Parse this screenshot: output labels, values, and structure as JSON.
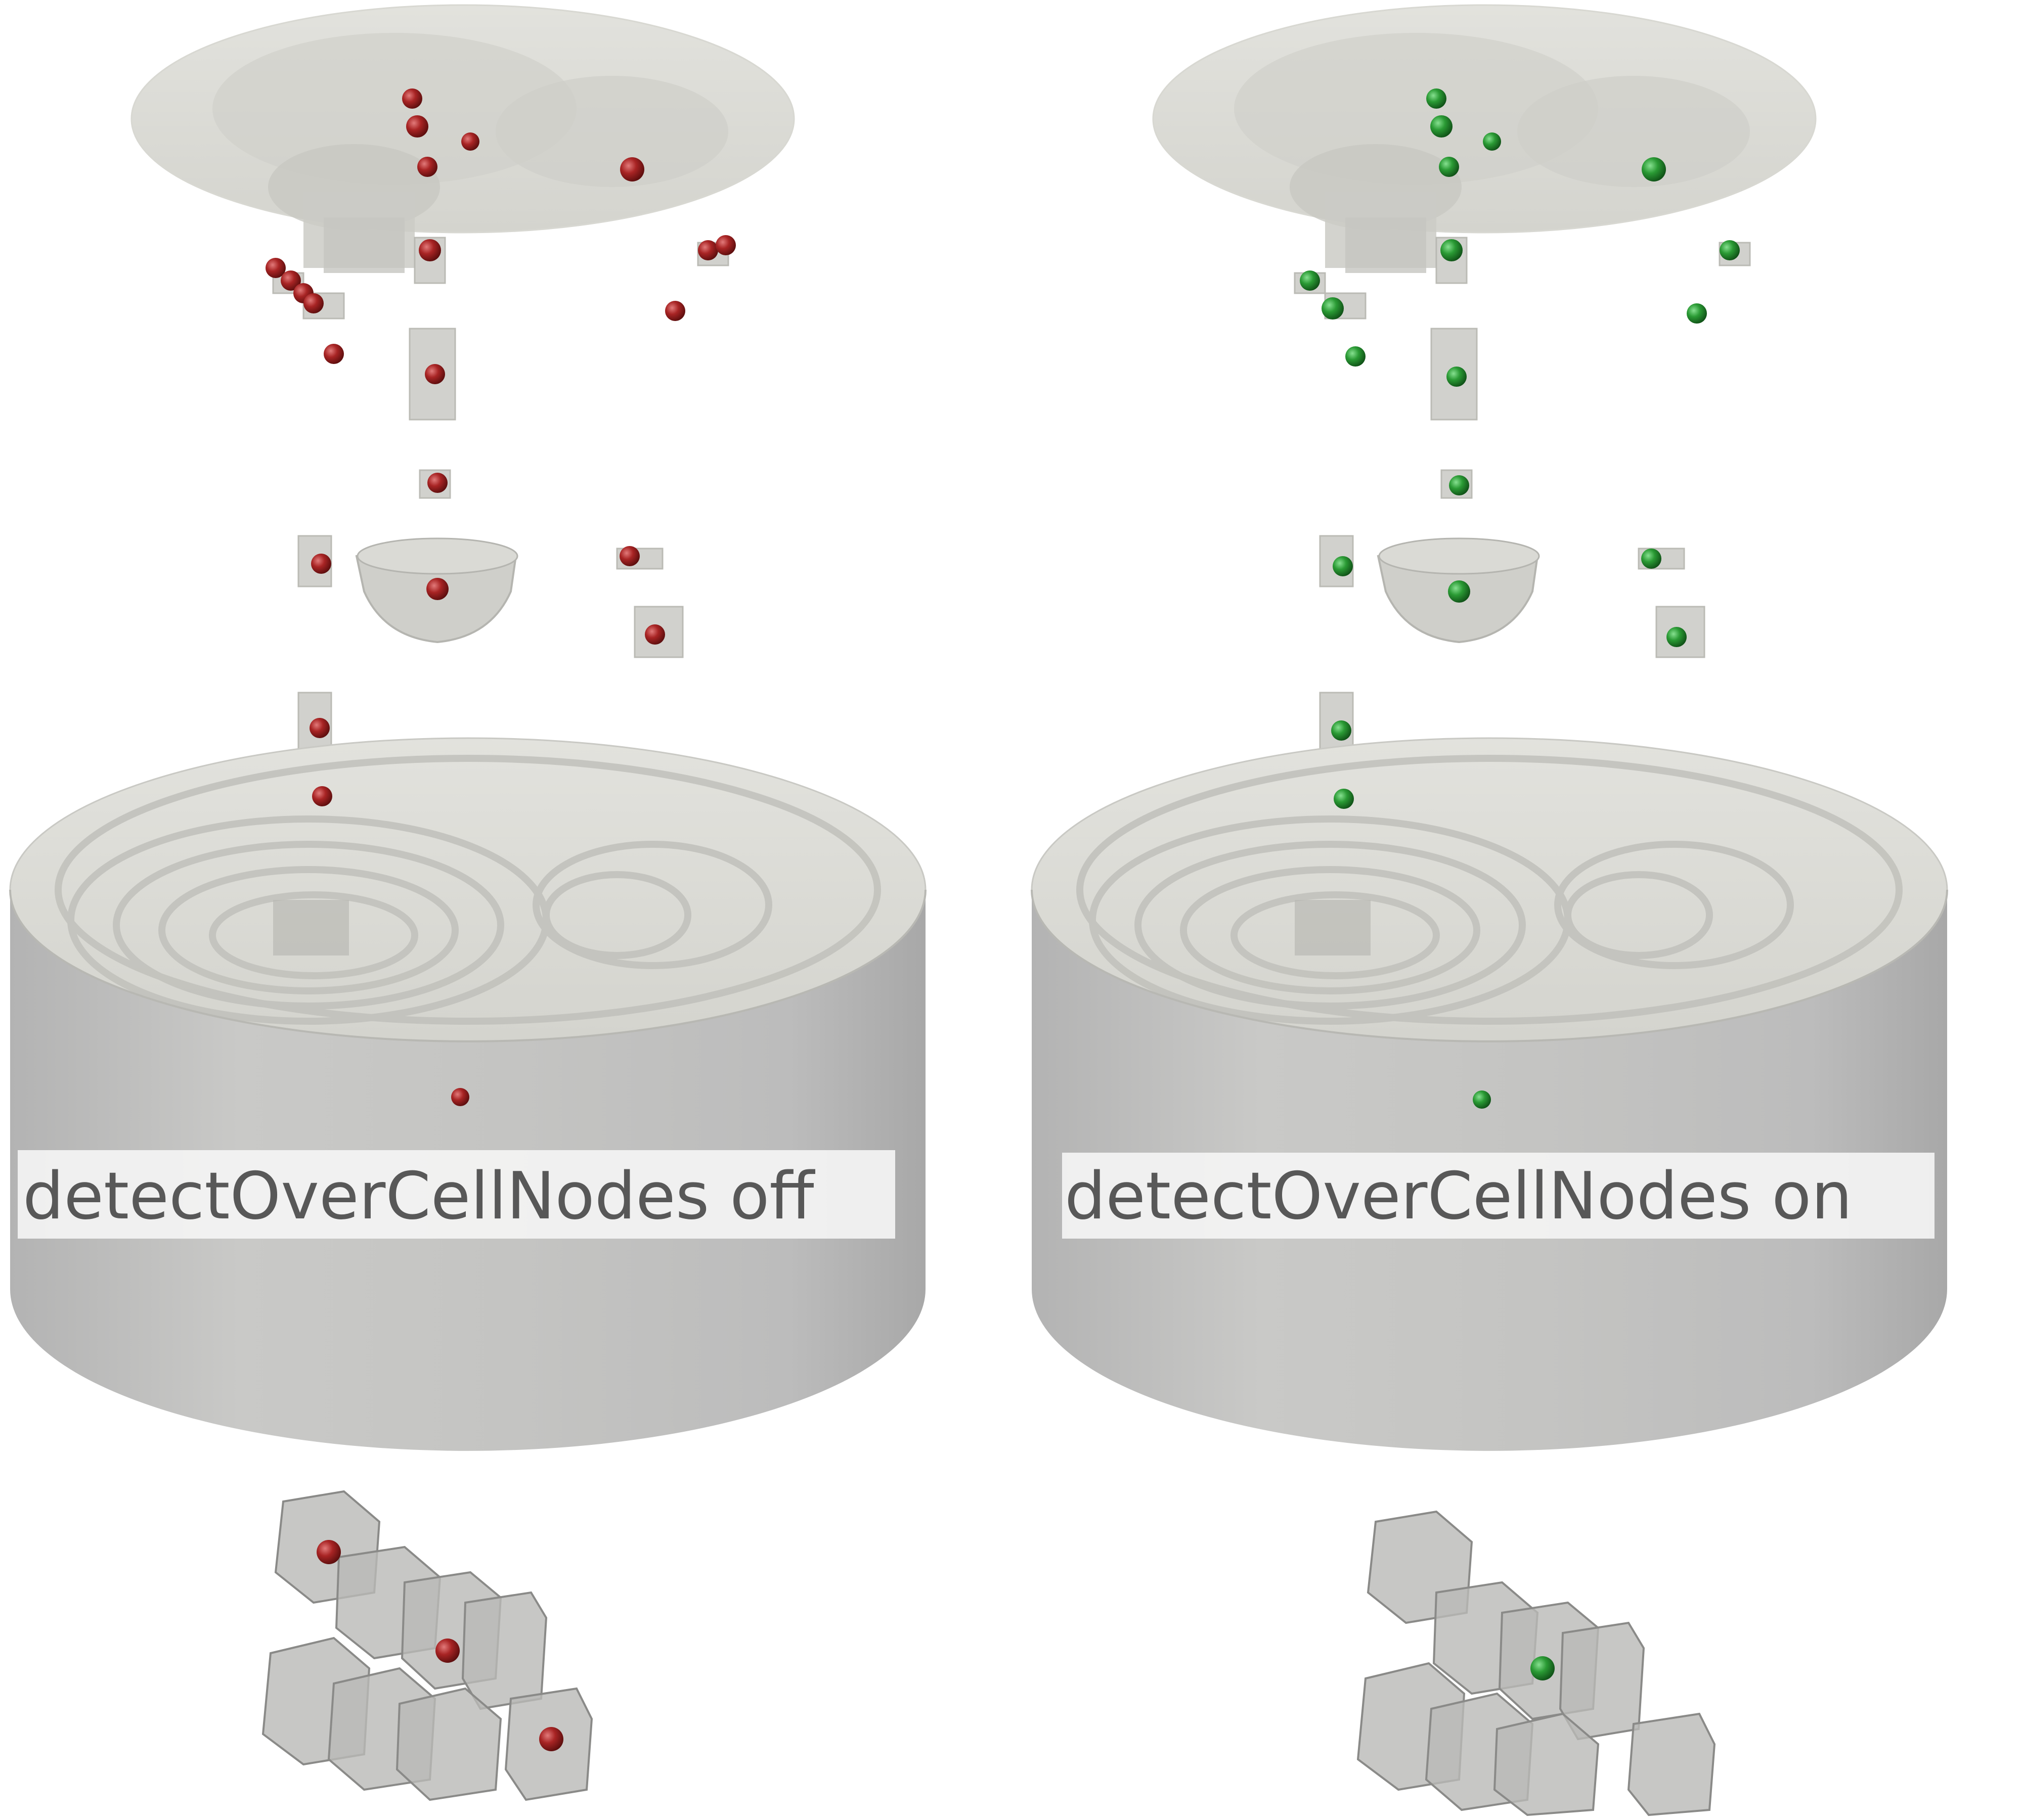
{
  "panels": [
    {
      "label": "detectOverCellNodes off",
      "sphere_color": "#9a1c1c",
      "sphere_highlight": "#d85a5a"
    },
    {
      "label": "detectOverCellNodes on",
      "sphere_color": "#1f8a2a",
      "sphere_highlight": "#6fd07a"
    }
  ],
  "colors": {
    "background": "#ffffff",
    "volume_fill": "#d4d4ce",
    "volume_side": "#bdbdbd",
    "cell_fill": "#b9b9b6",
    "cell_edge": "#8a8a88",
    "label_box": "#f4f4f4",
    "label_text": "#585858"
  }
}
